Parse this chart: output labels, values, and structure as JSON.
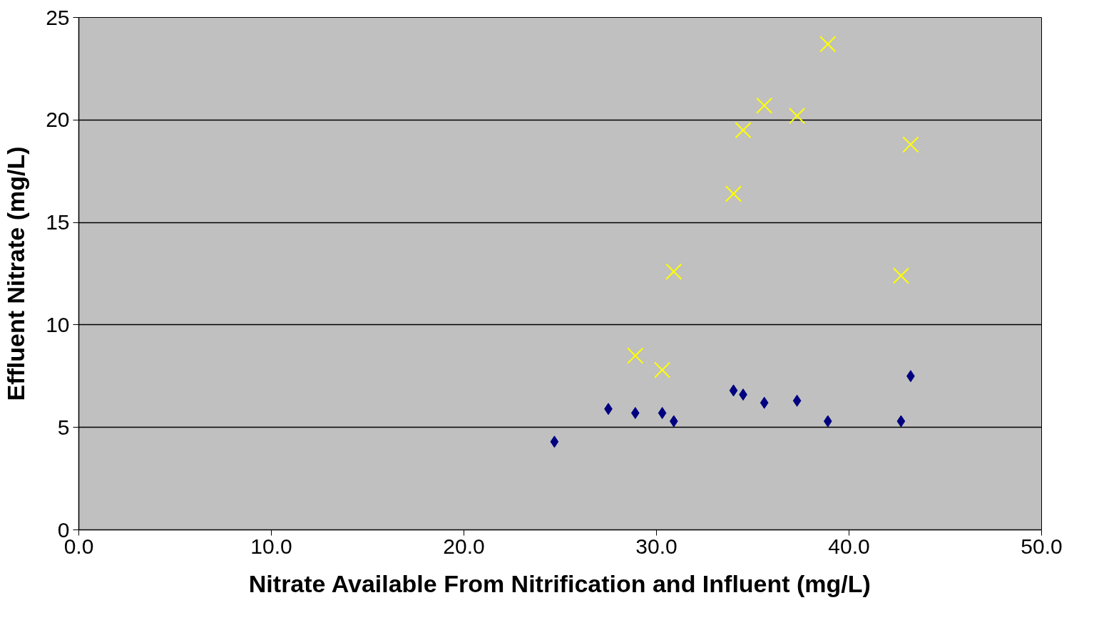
{
  "chart_data": {
    "type": "scatter",
    "xlabel": "Nitrate Available From Nitrification and Influent (mg/L)",
    "ylabel": "Effluent Nitrate (mg/L)",
    "xlim": [
      0,
      50
    ],
    "ylim": [
      0,
      25
    ],
    "xticks": [
      {
        "value": 0,
        "label": "0.0"
      },
      {
        "value": 10,
        "label": "10.0"
      },
      {
        "value": 20,
        "label": "20.0"
      },
      {
        "value": 30,
        "label": "30.0"
      },
      {
        "value": 40,
        "label": "40.0"
      },
      {
        "value": 50,
        "label": "50.0"
      }
    ],
    "yticks": [
      0,
      5,
      10,
      15,
      20,
      25
    ],
    "grid": "y",
    "series": [
      {
        "color": "#000080",
        "marker": "diamond",
        "x": [
          24.7,
          27.5,
          28.9,
          30.3,
          30.9,
          34.0,
          34.5,
          35.6,
          37.3,
          38.9,
          42.7,
          43.2
        ],
        "values": [
          4.3,
          5.9,
          5.7,
          5.7,
          5.3,
          6.8,
          6.6,
          6.2,
          6.3,
          5.3,
          5.3,
          7.5
        ]
      },
      {
        "color": "#ffff00",
        "marker": "cross",
        "x": [
          28.9,
          30.3,
          30.9,
          34.0,
          34.5,
          35.6,
          37.3,
          38.9,
          42.7,
          43.2
        ],
        "values": [
          8.5,
          7.8,
          12.6,
          16.4,
          19.5,
          20.7,
          20.2,
          23.7,
          12.4,
          18.8
        ]
      }
    ]
  }
}
